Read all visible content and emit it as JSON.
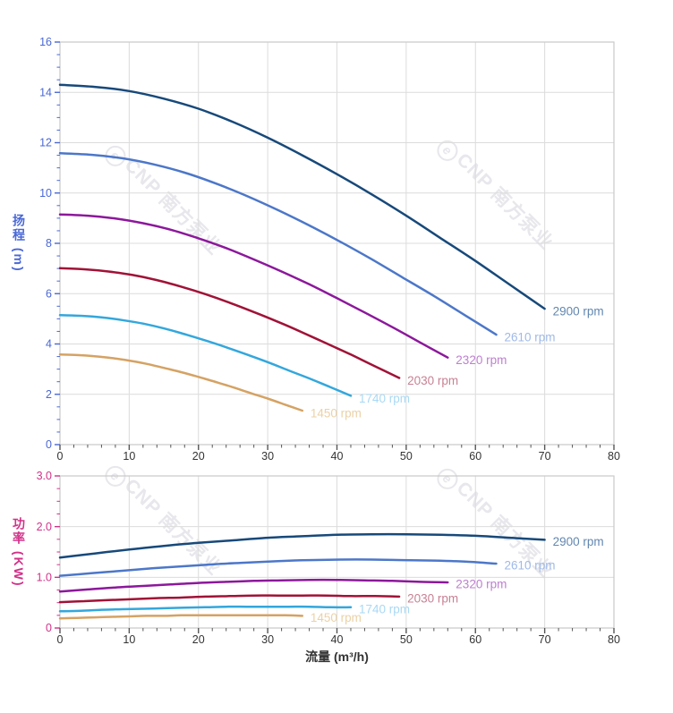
{
  "watermark": {
    "logo_letter": "e",
    "brand": "CNP",
    "name": "南方泵业"
  },
  "colors": {
    "grid": "#dcdcdc",
    "axis_line": "#c9c9c9",
    "x_tick": "#555555",
    "x_label": "#333333",
    "head_axis": "#4a68d6",
    "power_axis": "#d23189",
    "watermark": "#e7e7ec"
  },
  "chart_data": [
    {
      "type": "line",
      "title": "",
      "ylabel": "扬程 (m)",
      "xlabel": "",
      "xlim": [
        0,
        80
      ],
      "ylim": [
        0,
        16
      ],
      "x_tick_step": 10,
      "x_minor_step": 2,
      "y_tick_step": 2,
      "y_minor_step": 0.5,
      "x_tick_labels": [
        "0",
        "10",
        "20",
        "30",
        "40",
        "50",
        "60",
        "70",
        "80"
      ],
      "y_tick_labels": [
        "0",
        "2",
        "4",
        "6",
        "8",
        "10",
        "12",
        "14",
        "16"
      ],
      "grid": true,
      "legend_position": "right-of-curve-end",
      "axis_color": "#4a68d6",
      "series": [
        {
          "name": "2900 rpm",
          "color": "#17497a",
          "label_color": "#6187b0",
          "x": [
            0,
            5,
            10,
            15,
            20,
            25,
            30,
            35,
            40,
            45,
            50,
            55,
            60,
            65,
            70
          ],
          "y": [
            14.3,
            14.22,
            14.05,
            13.75,
            13.35,
            12.82,
            12.2,
            11.5,
            10.75,
            9.95,
            9.1,
            8.2,
            7.3,
            6.35,
            5.4
          ]
        },
        {
          "name": "2610 rpm",
          "color": "#4c77c9",
          "label_color": "#9fb9e8",
          "x": [
            0,
            4.5,
            9,
            13.5,
            18,
            22.5,
            27,
            31.5,
            36,
            40.5,
            45,
            49.5,
            54,
            58.5,
            63
          ],
          "y": [
            11.58,
            11.52,
            11.38,
            11.14,
            10.81,
            10.38,
            9.88,
            9.32,
            8.71,
            8.06,
            7.37,
            6.64,
            5.91,
            5.14,
            4.37
          ]
        },
        {
          "name": "2320 rpm",
          "color": "#8c189b",
          "label_color": "#be7fd0",
          "x": [
            0,
            4,
            8,
            12,
            16,
            20,
            24,
            28,
            32,
            36,
            40,
            44,
            48,
            52,
            56
          ],
          "y": [
            9.15,
            9.1,
            8.99,
            8.8,
            8.54,
            8.2,
            7.81,
            7.36,
            6.88,
            6.37,
            5.82,
            5.25,
            4.67,
            4.06,
            3.46
          ]
        },
        {
          "name": "2030 rpm",
          "color": "#a01236",
          "label_color": "#c78294",
          "x": [
            0,
            3.5,
            7,
            10.5,
            14,
            17.5,
            21,
            24.5,
            28,
            31.5,
            35,
            38.5,
            42,
            45.5,
            49
          ],
          "y": [
            7.01,
            6.97,
            6.88,
            6.74,
            6.54,
            6.28,
            5.98,
            5.64,
            5.27,
            4.88,
            4.46,
            4.02,
            3.58,
            3.11,
            2.65
          ]
        },
        {
          "name": "1740 rpm",
          "color": "#33a7dc",
          "label_color": "#a9d9f4",
          "x": [
            0,
            3,
            6,
            9,
            12,
            15,
            18,
            21,
            24,
            27,
            30,
            33,
            36,
            39,
            42
          ],
          "y": [
            5.15,
            5.12,
            5.06,
            4.95,
            4.81,
            4.62,
            4.39,
            4.14,
            3.87,
            3.58,
            3.28,
            2.95,
            2.63,
            2.29,
            1.94
          ]
        },
        {
          "name": "1450 rpm",
          "color": "#d5a263",
          "label_color": "#ebd2a6",
          "x": [
            0,
            2.5,
            5,
            7.5,
            10,
            12.5,
            15,
            17.5,
            20,
            22.5,
            25,
            27.5,
            30,
            32.5,
            35
          ],
          "y": [
            3.58,
            3.56,
            3.51,
            3.44,
            3.34,
            3.21,
            3.05,
            2.88,
            2.69,
            2.49,
            2.28,
            2.05,
            1.83,
            1.59,
            1.35
          ]
        }
      ]
    },
    {
      "type": "line",
      "title": "",
      "ylabel": "功率 (KW)",
      "xlabel": "流量 (m³/h)",
      "xlim": [
        0,
        80
      ],
      "ylim": [
        0,
        3
      ],
      "x_tick_step": 10,
      "x_minor_step": 2,
      "y_tick_step": 1,
      "y_minor_step": 0.25,
      "x_tick_labels": [
        "0",
        "10",
        "20",
        "30",
        "40",
        "50",
        "60",
        "70",
        "80"
      ],
      "y_tick_labels": [
        "0",
        "1.0",
        "2.0",
        "3.0"
      ],
      "grid": true,
      "legend_position": "right-of-curve-end",
      "axis_color": "#d23189",
      "series": [
        {
          "name": "2900 rpm",
          "color": "#17497a",
          "label_color": "#6187b0",
          "x": [
            0,
            5,
            10,
            15,
            20,
            25,
            30,
            35,
            40,
            45,
            50,
            55,
            60,
            65,
            70
          ],
          "y": [
            1.39,
            1.47,
            1.55,
            1.62,
            1.68,
            1.73,
            1.78,
            1.81,
            1.84,
            1.85,
            1.85,
            1.84,
            1.82,
            1.78,
            1.74
          ]
        },
        {
          "name": "2610 rpm",
          "color": "#4c77c9",
          "label_color": "#9fb9e8",
          "x": [
            0,
            4.5,
            9,
            13.5,
            18,
            22.5,
            27,
            31.5,
            36,
            40.5,
            45,
            49.5,
            54,
            58.5,
            63
          ],
          "y": [
            1.03,
            1.08,
            1.13,
            1.18,
            1.22,
            1.26,
            1.29,
            1.32,
            1.34,
            1.35,
            1.35,
            1.34,
            1.33,
            1.31,
            1.27
          ]
        },
        {
          "name": "2320 rpm",
          "color": "#8c189b",
          "label_color": "#be7fd0",
          "x": [
            0,
            4,
            8,
            12,
            16,
            20,
            24,
            28,
            32,
            36,
            40,
            44,
            48,
            52,
            56
          ],
          "y": [
            0.72,
            0.76,
            0.8,
            0.83,
            0.86,
            0.89,
            0.91,
            0.93,
            0.94,
            0.95,
            0.95,
            0.94,
            0.93,
            0.91,
            0.9
          ]
        },
        {
          "name": "2030 rpm",
          "color": "#a01236",
          "label_color": "#c78294",
          "x": [
            0,
            3.5,
            7,
            10.5,
            14,
            17.5,
            21,
            24.5,
            28,
            31.5,
            35,
            38.5,
            42,
            45.5,
            49
          ],
          "y": [
            0.51,
            0.53,
            0.55,
            0.57,
            0.59,
            0.6,
            0.62,
            0.63,
            0.64,
            0.64,
            0.64,
            0.64,
            0.63,
            0.63,
            0.62
          ]
        },
        {
          "name": "1740 rpm",
          "color": "#33a7dc",
          "label_color": "#a9d9f4",
          "x": [
            0,
            3,
            6,
            9,
            12,
            15,
            18,
            21,
            24,
            27,
            30,
            33,
            36,
            39,
            42
          ],
          "y": [
            0.33,
            0.34,
            0.36,
            0.37,
            0.38,
            0.39,
            0.4,
            0.41,
            0.42,
            0.42,
            0.42,
            0.42,
            0.42,
            0.41,
            0.41
          ]
        },
        {
          "name": "1450 rpm",
          "color": "#d5a263",
          "label_color": "#ebd2a6",
          "x": [
            0,
            2.5,
            5,
            7.5,
            10,
            12.5,
            15,
            17.5,
            20,
            22.5,
            25,
            27.5,
            30,
            32.5,
            35
          ],
          "y": [
            0.19,
            0.2,
            0.21,
            0.22,
            0.23,
            0.24,
            0.24,
            0.25,
            0.25,
            0.25,
            0.25,
            0.25,
            0.25,
            0.25,
            0.24
          ]
        }
      ]
    }
  ]
}
